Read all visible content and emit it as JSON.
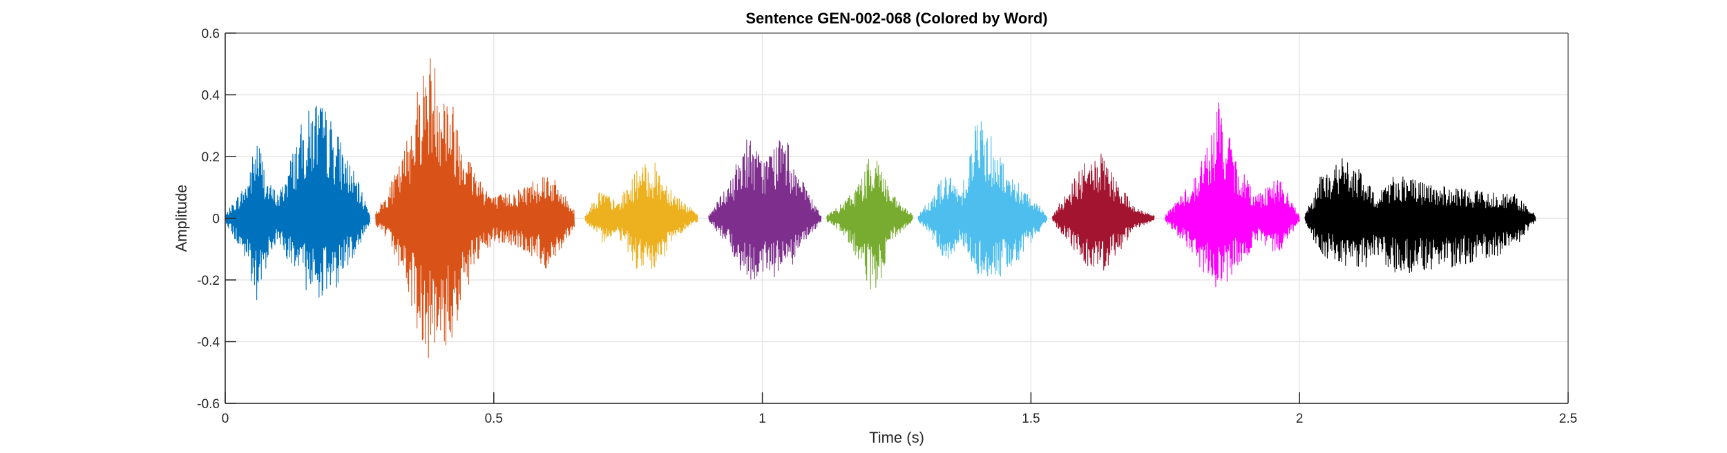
{
  "chart_data": {
    "type": "line",
    "title": "Sentence GEN-002-068 (Colored by Word)",
    "xlabel": "Time (s)",
    "ylabel": "Amplitude",
    "xlim": [
      0,
      2.5
    ],
    "ylim": [
      -0.6,
      0.6
    ],
    "xticks": [
      0,
      0.5,
      1,
      1.5,
      2,
      2.5
    ],
    "xtick_labels": [
      "0",
      "0.5",
      "1",
      "1.5",
      "2",
      "2.5"
    ],
    "yticks": [
      -0.6,
      -0.4,
      -0.2,
      0,
      0.2,
      0.4,
      0.6
    ],
    "ytick_labels": [
      "-0.6",
      "-0.4",
      "-0.2",
      "0",
      "0.2",
      "0.4",
      "0.6"
    ],
    "grid": true,
    "legend": false,
    "series": [
      {
        "color": "#0072BD",
        "x": [
          0.0,
          0.04,
          0.06,
          0.08,
          0.1,
          0.14,
          0.17,
          0.2,
          0.24,
          0.27
        ],
        "ymax": [
          0.01,
          0.12,
          0.28,
          0.12,
          0.08,
          0.3,
          0.4,
          0.32,
          0.15,
          0.02
        ],
        "ymin": [
          -0.01,
          -0.15,
          -0.32,
          -0.12,
          -0.08,
          -0.22,
          -0.26,
          -0.25,
          -0.12,
          -0.02
        ]
      },
      {
        "color": "#D95319",
        "x": [
          0.28,
          0.3,
          0.33,
          0.36,
          0.38,
          0.42,
          0.46,
          0.5,
          0.55,
          0.6,
          0.65
        ],
        "ymax": [
          0.02,
          0.08,
          0.2,
          0.45,
          0.55,
          0.4,
          0.18,
          0.07,
          0.1,
          0.16,
          0.03
        ],
        "ymin": [
          -0.02,
          -0.07,
          -0.18,
          -0.38,
          -0.46,
          -0.42,
          -0.18,
          -0.08,
          -0.1,
          -0.17,
          -0.03
        ]
      },
      {
        "color": "#EDB120",
        "x": [
          0.67,
          0.7,
          0.73,
          0.77,
          0.8,
          0.84,
          0.88
        ],
        "ymax": [
          0.01,
          0.1,
          0.05,
          0.17,
          0.18,
          0.08,
          0.01
        ],
        "ymin": [
          -0.01,
          -0.08,
          -0.05,
          -0.18,
          -0.18,
          -0.06,
          -0.01
        ]
      },
      {
        "color": "#7E2F8E",
        "x": [
          0.9,
          0.94,
          0.97,
          1.0,
          1.04,
          1.08,
          1.11
        ],
        "ymax": [
          0.01,
          0.12,
          0.28,
          0.2,
          0.28,
          0.1,
          0.01
        ],
        "ymin": [
          -0.01,
          -0.1,
          -0.22,
          -0.18,
          -0.2,
          -0.08,
          -0.01
        ]
      },
      {
        "color": "#77AC30",
        "x": [
          1.12,
          1.15,
          1.18,
          1.21,
          1.24,
          1.28
        ],
        "ymax": [
          0.01,
          0.05,
          0.12,
          0.24,
          0.08,
          0.01
        ],
        "ymin": [
          -0.01,
          -0.05,
          -0.15,
          -0.28,
          -0.08,
          -0.01
        ]
      },
      {
        "color": "#4DBEEE",
        "x": [
          1.29,
          1.31,
          1.34,
          1.37,
          1.4,
          1.42,
          1.46,
          1.5,
          1.53
        ],
        "ymax": [
          0.01,
          0.06,
          0.15,
          0.1,
          0.35,
          0.3,
          0.15,
          0.08,
          0.01
        ],
        "ymin": [
          -0.01,
          -0.05,
          -0.15,
          -0.08,
          -0.2,
          -0.2,
          -0.18,
          -0.08,
          -0.01
        ]
      },
      {
        "color": "#A2142F",
        "x": [
          1.54,
          1.57,
          1.6,
          1.63,
          1.66,
          1.7,
          1.73
        ],
        "ymax": [
          0.01,
          0.1,
          0.18,
          0.21,
          0.12,
          0.03,
          0.01
        ],
        "ymin": [
          -0.01,
          -0.08,
          -0.15,
          -0.18,
          -0.12,
          -0.03,
          -0.01
        ]
      },
      {
        "color": "#FF00FF",
        "x": [
          1.75,
          1.78,
          1.8,
          1.83,
          1.85,
          1.88,
          1.92,
          1.96,
          2.0
        ],
        "ymax": [
          0.01,
          0.08,
          0.12,
          0.25,
          0.39,
          0.2,
          0.08,
          0.14,
          0.01
        ],
        "ymin": [
          -0.01,
          -0.07,
          -0.12,
          -0.2,
          -0.25,
          -0.18,
          -0.08,
          -0.12,
          -0.01
        ]
      },
      {
        "color": "#000000",
        "x": [
          2.01,
          2.04,
          2.08,
          2.11,
          2.14,
          2.18,
          2.22,
          2.28,
          2.34,
          2.4,
          2.44
        ],
        "ymax": [
          0.01,
          0.14,
          0.2,
          0.16,
          0.08,
          0.15,
          0.12,
          0.1,
          0.09,
          0.08,
          0.01
        ],
        "ymin": [
          -0.01,
          -0.12,
          -0.16,
          -0.18,
          -0.14,
          -0.18,
          -0.18,
          -0.16,
          -0.14,
          -0.1,
          -0.01
        ]
      }
    ]
  }
}
